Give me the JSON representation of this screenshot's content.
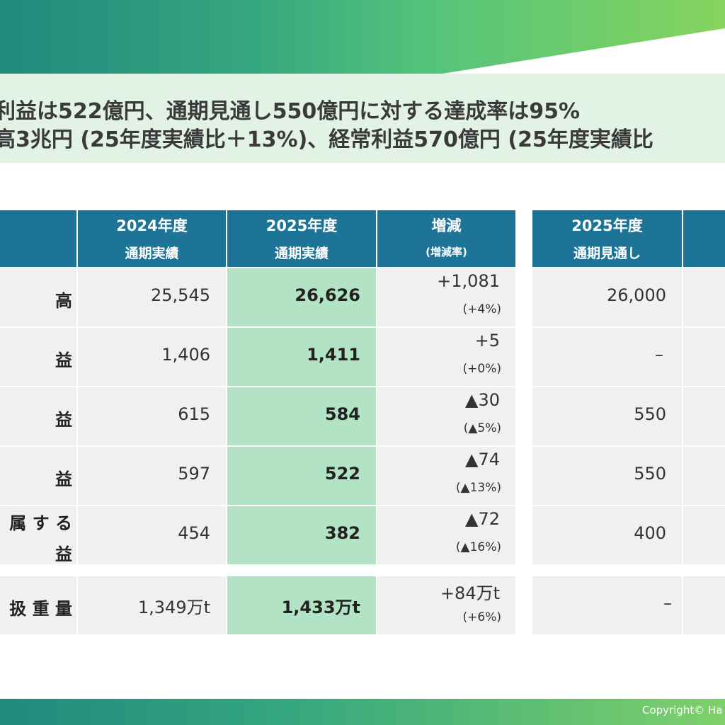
{
  "headline": {
    "line1": "利益は522億円、通期見通し550億円に対する達成率は95%",
    "line2": "高3兆円 (25年度実績比＋13%)、経常利益570億円 (25年度実績比"
  },
  "table": {
    "headers": [
      {
        "l1": "2024年度",
        "l2": "通期実績"
      },
      {
        "l1": "2025年度",
        "l2": "通期実績"
      },
      {
        "l1": "増減",
        "l2": "(増減率)"
      }
    ],
    "rows": [
      {
        "label": "高",
        "fy2024": "25,545",
        "fy2025": "26,626",
        "diff": "+1,081",
        "pct": "(+4%)"
      },
      {
        "label": "益",
        "fy2024": "1,406",
        "fy2025": "1,411",
        "diff": "+5",
        "pct": "(+0%)"
      },
      {
        "label": "益",
        "fy2024": "615",
        "fy2025": "584",
        "diff": "▲30",
        "pct": "(▲5%)"
      },
      {
        "label": "益",
        "fy2024": "597",
        "fy2025": "522",
        "diff": "▲74",
        "pct": "(▲13%)"
      },
      {
        "label_l1": "属 す る",
        "label_l2": "益",
        "fy2024": "454",
        "fy2025": "382",
        "diff": "▲72",
        "pct": "(▲16%)"
      },
      {
        "label": "扱 重 量",
        "fy2024": "1,349万t",
        "fy2025": "1,433万t",
        "diff": "+84万t",
        "pct": "(+6%)"
      }
    ]
  },
  "forecast": {
    "header": {
      "l1": "2025年度",
      "l2": "通期見通し"
    },
    "values": [
      "26,000",
      "–",
      "550",
      "550",
      "400",
      "–"
    ]
  },
  "footer": {
    "copyright": "Copyright© Ha"
  },
  "colors": {
    "header_bg": "#1d7496",
    "highlight_bg": "#b2e3c4",
    "cell_bg": "#f0f0f0",
    "headline_bg": "#e2f3e6"
  }
}
